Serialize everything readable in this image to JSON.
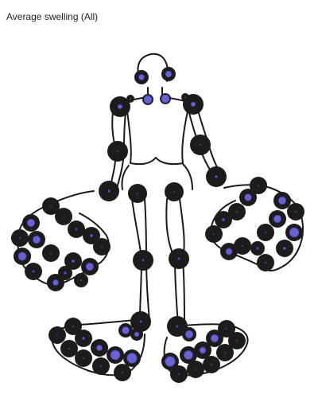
{
  "title": "Average swelling (All)",
  "colors": {
    "joint": "#1c1c1c",
    "swelling": "#6a63cf",
    "swelling_stroke": "#3f3aa6",
    "outline": "#1a1a1a"
  },
  "joints": [
    {
      "id": "jaw-right",
      "swelling": 0.55
    },
    {
      "id": "jaw-left",
      "swelling": 0.6
    },
    {
      "id": "sternoclavicular-right",
      "swelling": 1.0
    },
    {
      "id": "sternoclavicular-left",
      "swelling": 1.0
    },
    {
      "id": "acromioclavicular-right",
      "swelling": 0
    },
    {
      "id": "acromioclavicular-left",
      "swelling": 0
    },
    {
      "id": "shoulder-right",
      "swelling": 0.3
    },
    {
      "id": "shoulder-left",
      "swelling": 0.3
    },
    {
      "id": "elbow-right",
      "swelling": 0
    },
    {
      "id": "elbow-left",
      "swelling": 0
    },
    {
      "id": "wrist-right",
      "swelling": 0.15
    },
    {
      "id": "wrist-left",
      "swelling": 0.15
    },
    {
      "id": "hip-right",
      "swelling": 0
    },
    {
      "id": "hip-left",
      "swelling": 0
    },
    {
      "id": "knee-right",
      "swelling": 0.1
    },
    {
      "id": "knee-left",
      "swelling": 0.1
    },
    {
      "id": "ankle-right",
      "swelling": 0.1
    },
    {
      "id": "ankle-left",
      "swelling": 0.1
    },
    {
      "id": "hand-r-1",
      "swelling": 0
    },
    {
      "id": "hand-r-2",
      "swelling": 0.6
    },
    {
      "id": "hand-r-3",
      "swelling": 0
    },
    {
      "id": "hand-r-4",
      "swelling": 0.6
    },
    {
      "id": "hand-r-5",
      "swelling": 0
    },
    {
      "id": "hand-r-6",
      "swelling": 0.15
    },
    {
      "id": "hand-r-7",
      "swelling": 0.65
    },
    {
      "id": "hand-r-8",
      "swelling": 0
    },
    {
      "id": "hand-r-9",
      "swelling": 0.2
    },
    {
      "id": "hand-r-10",
      "swelling": 0
    },
    {
      "id": "hand-r-11",
      "swelling": 0.2
    },
    {
      "id": "hand-r-12",
      "swelling": 0.6
    },
    {
      "id": "hand-r-13",
      "swelling": 0.15
    },
    {
      "id": "hand-r-14",
      "swelling": 0.45
    },
    {
      "id": "hand-r-15",
      "swelling": 0
    },
    {
      "id": "hand-r-16",
      "swelling": 0.2
    },
    {
      "id": "hand-l-1",
      "swelling": 0
    },
    {
      "id": "hand-l-2",
      "swelling": 0.55
    },
    {
      "id": "hand-l-3",
      "swelling": 0.6
    },
    {
      "id": "hand-l-4",
      "swelling": 0
    },
    {
      "id": "hand-l-5",
      "swelling": 0.2
    },
    {
      "id": "hand-l-6",
      "swelling": 0.6
    },
    {
      "id": "hand-l-7",
      "swelling": 0
    },
    {
      "id": "hand-l-8",
      "swelling": 0
    },
    {
      "id": "hand-l-9",
      "swelling": 0.75
    },
    {
      "id": "hand-l-10",
      "swelling": 0
    },
    {
      "id": "hand-l-11",
      "swelling": 0
    },
    {
      "id": "hand-l-12",
      "swelling": 0.5
    },
    {
      "id": "hand-l-13",
      "swelling": 0.2
    },
    {
      "id": "hand-l-14",
      "swelling": 0
    },
    {
      "id": "hand-l-15",
      "swelling": 0.15
    },
    {
      "id": "foot-r-1",
      "swelling": 0
    },
    {
      "id": "foot-r-2",
      "swelling": 0
    },
    {
      "id": "foot-r-3",
      "swelling": 0.2
    },
    {
      "id": "foot-r-4",
      "swelling": 0
    },
    {
      "id": "foot-r-5",
      "swelling": 0.45
    },
    {
      "id": "foot-r-6",
      "swelling": 0
    },
    {
      "id": "foot-r-7",
      "swelling": 0.75
    },
    {
      "id": "foot-r-8",
      "swelling": 0
    },
    {
      "id": "foot-r-9",
      "swelling": 0.8
    },
    {
      "id": "foot-r-10",
      "swelling": 0
    },
    {
      "id": "foot-r-11",
      "swelling": 0.7
    },
    {
      "id": "foot-r-12",
      "swelling": 0.5
    },
    {
      "id": "foot-l-1",
      "swelling": 0
    },
    {
      "id": "foot-l-2",
      "swelling": 0.6
    },
    {
      "id": "foot-l-3",
      "swelling": 0
    },
    {
      "id": "foot-l-4",
      "swelling": 0.5
    },
    {
      "id": "foot-l-5",
      "swelling": 0
    },
    {
      "id": "foot-l-6",
      "swelling": 0.7
    },
    {
      "id": "foot-l-7",
      "swelling": 0.75
    },
    {
      "id": "foot-l-8",
      "swelling": 0
    },
    {
      "id": "foot-l-9",
      "swelling": 0.8
    },
    {
      "id": "foot-l-10",
      "swelling": 0
    },
    {
      "id": "foot-l-11",
      "swelling": 0
    }
  ]
}
